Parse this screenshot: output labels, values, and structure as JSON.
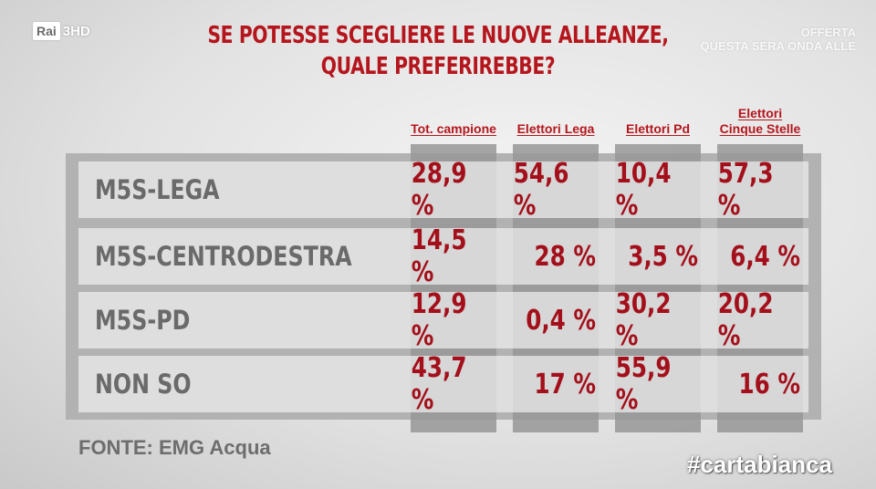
{
  "channel": {
    "logo": "Rai",
    "logo_suffix": "3HD"
  },
  "top_right_overlay": [
    "OFFERTA",
    "QUESTA SERA ONDA ALLE"
  ],
  "title_lines": [
    "SE POTESSE SCEGLIERE LE NUOVE ALLEANZE,",
    "QUALE PREFERIREBBE?"
  ],
  "chart_data": {
    "type": "table",
    "title": "SE POTESSE SCEGLIERE LE NUOVE ALLEANZE, QUALE PREFERIREBBE?",
    "columns": [
      "Tot. campione",
      "Elettori Lega",
      "Elettori Pd",
      "Elettori Cinque Stelle"
    ],
    "column_header_lines": [
      [
        "Tot. campione"
      ],
      [
        "Elettori Lega"
      ],
      [
        "Elettori Pd"
      ],
      [
        "Elettori",
        "Cinque Stelle"
      ]
    ],
    "rows": [
      {
        "label": "M5S-LEGA",
        "values": [
          28.9,
          54.6,
          10.4,
          57.3
        ],
        "display": [
          "28,9 %",
          "54,6 %",
          "10,4 %",
          "57,3 %"
        ]
      },
      {
        "label": "M5S-CENTRODESTRA",
        "values": [
          14.5,
          28,
          3.5,
          6.4
        ],
        "display": [
          "14,5 %",
          "28 %",
          "3,5 %",
          "6,4 %"
        ]
      },
      {
        "label": "M5S-PD",
        "values": [
          12.9,
          0.4,
          30.2,
          20.2
        ],
        "display": [
          "12,9 %",
          "0,4 %",
          "30,2 %",
          "20,2 %"
        ]
      },
      {
        "label": "NON SO",
        "values": [
          43.7,
          17,
          55.9,
          16
        ],
        "display": [
          "43,7 %",
          "17 %",
          "55,9 %",
          "16 %"
        ]
      }
    ],
    "unit": "%"
  },
  "source": "FONTE: EMG Acqua",
  "hashtag": "#cartabianca",
  "colors": {
    "accent_red": "#b5161d",
    "value_red": "#a3101b",
    "label_gray": "#6a6a6a"
  }
}
